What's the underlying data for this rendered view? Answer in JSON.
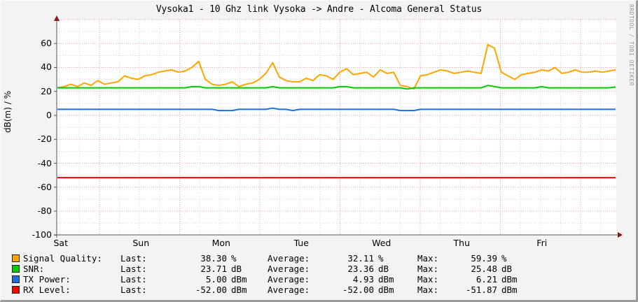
{
  "chart_data": {
    "type": "line",
    "title": "Vysoka1 - 10 Ghz link Vysoka -> Andre - Alcoma General Status",
    "xlabel": "",
    "ylabel": "dB(m) / %",
    "ylim": [
      -100,
      80
    ],
    "yticks": [
      60,
      40,
      20,
      0,
      -20,
      -40,
      -60,
      -80,
      -100
    ],
    "ytick_labels": [
      "60",
      "40",
      "20",
      "0",
      "-20",
      "-40",
      "-60",
      "-80",
      "-100"
    ],
    "categories": [
      "Sat",
      "Sun",
      "Mon",
      "Tue",
      "Wed",
      "Thu",
      "Fri"
    ],
    "grid": true,
    "legend_position": "bottom",
    "watermark": "RRDTOOL / TOBI OETIKER",
    "x_points_per_day": 12,
    "series": [
      {
        "name": "Signal Quality",
        "color": "#FFA500",
        "unit": "%",
        "values": [
          23,
          24,
          26,
          24,
          27,
          25,
          29,
          26,
          27,
          28,
          33,
          31,
          30,
          33,
          34,
          36,
          37,
          38,
          36,
          37,
          40,
          45,
          30,
          26,
          25,
          26,
          28,
          24,
          26,
          27,
          30,
          35,
          44,
          32,
          29,
          28,
          28,
          31,
          29,
          34,
          33,
          30,
          36,
          39,
          34,
          35,
          36,
          32,
          38,
          35,
          36,
          25,
          24,
          22,
          33,
          34,
          36,
          38,
          37,
          35,
          36,
          37,
          36,
          35,
          59,
          56,
          36,
          33,
          30,
          34,
          35,
          36,
          38,
          37,
          40,
          35,
          36,
          38,
          36,
          36,
          37,
          36,
          37,
          38
        ],
        "last": "38.30",
        "average": "32.11",
        "max": "59.39"
      },
      {
        "name": "SNR",
        "color": "#00CC00",
        "unit": "dB",
        "values": [
          23,
          23,
          23,
          23,
          23,
          23,
          23,
          23,
          23,
          23,
          23,
          23,
          23,
          23,
          23,
          23,
          23,
          23,
          23,
          23,
          24,
          24,
          23,
          23,
          23,
          23,
          23,
          23,
          23,
          23,
          23,
          23,
          24,
          23,
          23,
          23,
          23,
          23,
          23,
          23,
          23,
          23,
          24,
          24,
          23,
          23,
          23,
          23,
          23,
          23,
          23,
          23,
          22,
          23,
          23,
          23,
          23,
          23,
          23,
          23,
          23,
          23,
          23,
          23,
          25,
          24,
          23,
          23,
          23,
          23,
          23,
          23,
          24,
          23,
          23,
          23,
          23,
          23,
          23,
          23,
          23,
          23,
          23,
          23.71
        ],
        "last": "23.71",
        "average": "23.36",
        "max": "25.48"
      },
      {
        "name": "TX Power",
        "color": "#1E6EDC",
        "unit": "dBm",
        "values": [
          5,
          5,
          5,
          5,
          5,
          5,
          5,
          5,
          5,
          5,
          5,
          5,
          5,
          5,
          5,
          5,
          5,
          5,
          5,
          5,
          5,
          5,
          5,
          5,
          4,
          4,
          4,
          5,
          5,
          5,
          5,
          5,
          6,
          5,
          5,
          4,
          5,
          5,
          5,
          5,
          5,
          5,
          5,
          5,
          5,
          5,
          5,
          5,
          5,
          5,
          5,
          4,
          4,
          4,
          5,
          5,
          5,
          5,
          5,
          5,
          5,
          5,
          5,
          5,
          5,
          5,
          5,
          5,
          5,
          5,
          5,
          5,
          5,
          5,
          5,
          5,
          5,
          5,
          5,
          5,
          5,
          5,
          5,
          5
        ],
        "last": "5.00",
        "average": "4.93",
        "max": "6.21"
      },
      {
        "name": "RX Level",
        "color": "#FF0000",
        "unit": "dBm",
        "values": [
          -52,
          -52,
          -52,
          -52,
          -52,
          -52,
          -52,
          -52,
          -52,
          -52,
          -52,
          -52,
          -52,
          -52,
          -52,
          -52,
          -52,
          -52,
          -52,
          -52,
          -52,
          -52,
          -52,
          -52,
          -52,
          -52,
          -52,
          -52,
          -52,
          -52,
          -52,
          -52,
          -52,
          -52,
          -52,
          -52,
          -52,
          -52,
          -52,
          -52,
          -52,
          -52,
          -52,
          -52,
          -52,
          -52,
          -52,
          -52,
          -52,
          -52,
          -52,
          -52,
          -52,
          -52,
          -52,
          -52,
          -52,
          -52,
          -52,
          -52,
          -52,
          -52,
          -52,
          -52,
          -52,
          -52,
          -52,
          -52,
          -52,
          -52,
          -52,
          -52,
          -52,
          -52,
          -52,
          -52,
          -52,
          -52,
          -52,
          -52,
          -52,
          -52,
          -52,
          -52
        ],
        "last": "-52.00",
        "average": "-52.00",
        "max": "-51.87"
      }
    ]
  },
  "legend": {
    "last_label": "Last:",
    "average_label": "Average:",
    "max_label": "Max:",
    "rows": [
      {
        "name": "Signal Quality:",
        "last": "38.30",
        "last_unit": "%",
        "average": "32.11",
        "average_unit": "%",
        "max": "59.39",
        "max_unit": "%",
        "color": "#FFA500"
      },
      {
        "name": "SNR:",
        "last": "23.71",
        "last_unit": "dB",
        "average": "23.36",
        "average_unit": "dB",
        "max": "25.48",
        "max_unit": "dB",
        "color": "#00CC00"
      },
      {
        "name": "TX Power:",
        "last": "5.00",
        "last_unit": "dBm",
        "average": "4.93",
        "average_unit": "dBm",
        "max": "6.21",
        "max_unit": "dBm",
        "color": "#1E6EDC"
      },
      {
        "name": "RX Level:",
        "last": "-52.00",
        "last_unit": "dBm",
        "average": "-52.00",
        "average_unit": "dBm",
        "max": "-51.87",
        "max_unit": "dBm",
        "color": "#FF0000"
      }
    ]
  }
}
